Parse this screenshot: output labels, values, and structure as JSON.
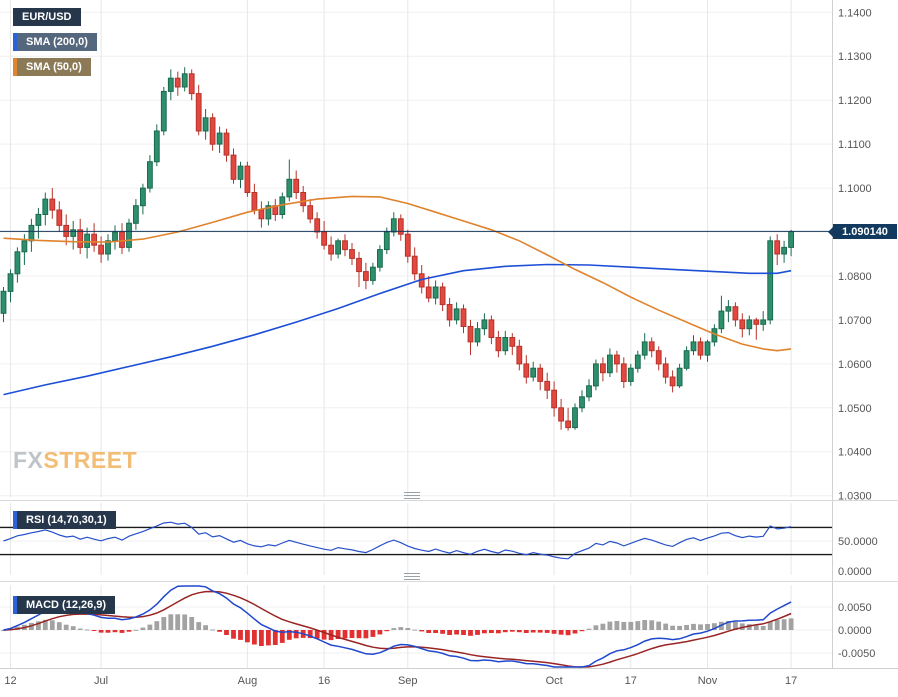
{
  "legend": {
    "symbol_label": "EUR/USD",
    "sma200_label": "SMA (200,0)",
    "sma50_label": "SMA (50,0)"
  },
  "watermark": {
    "fx": "FX",
    "street": "STREET"
  },
  "colors": {
    "badge_dark": "#26374b",
    "sma200_badge": "#55677d",
    "sma50_badge": "#8c7a57",
    "strip_blue": "#2b62d9",
    "strip_orange": "#e0852f",
    "price_badge": "#12395e",
    "wm_fx": "#b4bac0",
    "wm_street": "#f0b25c",
    "sep": "#d8d8d8",
    "grid_h": "#efefef",
    "grid_v": "#e7e7e7",
    "axis_text": "#555555",
    "axis_border": "#d0d0d0",
    "candle_up": "#2e8f6c",
    "candle_up_border": "#1a6a4e",
    "candle_down": "#e2483f",
    "candle_down_border": "#b5332b",
    "sma200": "#1c4fd6",
    "sma50": "#e0832d",
    "price_line": "#16395c",
    "rsi_line": "#2750c8",
    "rsi_level": "#1b1b1b",
    "macd_line": "#1f48cc",
    "signal_line": "#992424",
    "hist_pos": "#a2a2a2",
    "hist_neg": "#e23030"
  },
  "chart_data": {
    "type": "candlestick",
    "symbol": "EUR/USD",
    "current_price": 1.09014,
    "current_price_label": "1.090140",
    "ylim": [
      1.0297,
      1.1428
    ],
    "price_ticks": [
      {
        "v": 1.14,
        "label": "1.1400"
      },
      {
        "v": 1.13,
        "label": "1.1300"
      },
      {
        "v": 1.12,
        "label": "1.1200"
      },
      {
        "v": 1.11,
        "label": "1.1100"
      },
      {
        "v": 1.1,
        "label": "1.1000"
      },
      {
        "v": 1.09,
        "label": "1.0900"
      },
      {
        "v": 1.08,
        "label": "1.0800"
      },
      {
        "v": 1.07,
        "label": "1.0700"
      },
      {
        "v": 1.06,
        "label": "1.0600"
      },
      {
        "v": 1.05,
        "label": "1.0500"
      },
      {
        "v": 1.04,
        "label": "1.0400"
      },
      {
        "v": 1.03,
        "label": "1.0300"
      }
    ],
    "time_ticks": [
      {
        "label": "12",
        "i": 1
      },
      {
        "label": "Jul",
        "i": 14
      },
      {
        "label": "Aug",
        "i": 35
      },
      {
        "label": "16",
        "i": 46
      },
      {
        "label": "Sep",
        "i": 58
      },
      {
        "label": "Oct",
        "i": 79
      },
      {
        "label": "17",
        "i": 90
      },
      {
        "label": "Nov",
        "i": 101
      },
      {
        "label": "17",
        "i": 113
      }
    ],
    "candles": [
      [
        1.0715,
        1.0775,
        1.0695,
        1.0765
      ],
      [
        1.0765,
        1.0815,
        1.074,
        1.0805
      ],
      [
        1.0805,
        1.0865,
        1.0785,
        1.0855
      ],
      [
        1.0855,
        1.0895,
        1.0825,
        1.088
      ],
      [
        1.088,
        1.093,
        1.0855,
        1.0915
      ],
      [
        1.0915,
        1.0955,
        1.0885,
        1.094
      ],
      [
        1.094,
        1.099,
        1.0915,
        1.0975
      ],
      [
        1.0975,
        1.1,
        1.093,
        1.095
      ],
      [
        1.095,
        1.097,
        1.09,
        1.0915
      ],
      [
        1.0915,
        1.094,
        1.087,
        1.089
      ],
      [
        1.089,
        1.0925,
        1.086,
        1.0905
      ],
      [
        1.0905,
        1.093,
        1.085,
        1.0865
      ],
      [
        1.0865,
        1.091,
        1.084,
        1.0895
      ],
      [
        1.0895,
        1.092,
        1.0855,
        1.087
      ],
      [
        1.087,
        1.089,
        1.083,
        1.085
      ],
      [
        1.085,
        1.0895,
        1.0835,
        1.088
      ],
      [
        1.088,
        1.0915,
        1.086,
        1.09
      ],
      [
        1.09,
        1.092,
        1.085,
        1.0865
      ],
      [
        1.0865,
        1.093,
        1.0855,
        1.092
      ],
      [
        1.092,
        1.0975,
        1.0905,
        1.096
      ],
      [
        1.096,
        1.101,
        1.094,
        1.1
      ],
      [
        1.1,
        1.1075,
        1.099,
        1.106
      ],
      [
        1.106,
        1.1145,
        1.105,
        1.113
      ],
      [
        1.113,
        1.123,
        1.112,
        1.122
      ],
      [
        1.122,
        1.127,
        1.12,
        1.125
      ],
      [
        1.125,
        1.1265,
        1.121,
        1.123
      ],
      [
        1.123,
        1.1275,
        1.122,
        1.126
      ],
      [
        1.126,
        1.127,
        1.12,
        1.1215
      ],
      [
        1.1215,
        1.1235,
        1.112,
        1.113
      ],
      [
        1.113,
        1.118,
        1.111,
        1.116
      ],
      [
        1.116,
        1.117,
        1.1085,
        1.11
      ],
      [
        1.11,
        1.114,
        1.108,
        1.1125
      ],
      [
        1.1125,
        1.1135,
        1.106,
        1.1075
      ],
      [
        1.1075,
        1.109,
        1.101,
        1.102
      ],
      [
        1.102,
        1.106,
        1.1,
        1.105
      ],
      [
        1.105,
        1.106,
        1.098,
        1.099
      ],
      [
        1.099,
        1.101,
        1.094,
        1.095
      ],
      [
        1.095,
        1.097,
        1.091,
        1.093
      ],
      [
        1.093,
        1.097,
        1.0915,
        1.096
      ],
      [
        1.096,
        1.0975,
        1.0925,
        1.094
      ],
      [
        1.094,
        1.099,
        1.093,
        1.098
      ],
      [
        1.098,
        1.1065,
        1.097,
        1.102
      ],
      [
        1.102,
        1.104,
        1.0975,
        1.099
      ],
      [
        1.099,
        1.1005,
        1.0945,
        1.096
      ],
      [
        1.096,
        1.0975,
        1.092,
        1.093
      ],
      [
        1.093,
        1.0945,
        1.0885,
        1.09
      ],
      [
        1.09,
        1.0925,
        1.086,
        1.087
      ],
      [
        1.087,
        1.089,
        1.0835,
        1.085
      ],
      [
        1.085,
        1.0885,
        1.084,
        1.088
      ],
      [
        1.088,
        1.0895,
        1.0845,
        1.086
      ],
      [
        1.086,
        1.0875,
        1.0825,
        1.084
      ],
      [
        1.084,
        1.0855,
        1.0775,
        1.081
      ],
      [
        1.081,
        1.083,
        1.077,
        1.079
      ],
      [
        1.079,
        1.083,
        1.078,
        1.082
      ],
      [
        1.082,
        1.087,
        1.081,
        1.086
      ],
      [
        1.086,
        1.091,
        1.085,
        1.09
      ],
      [
        1.09,
        1.0945,
        1.089,
        1.093
      ],
      [
        1.093,
        1.094,
        1.088,
        1.0895
      ],
      [
        1.0895,
        1.0905,
        1.083,
        1.0845
      ],
      [
        1.0845,
        1.0865,
        1.079,
        1.0805
      ],
      [
        1.0805,
        1.0825,
        1.076,
        1.0775
      ],
      [
        1.0775,
        1.08,
        1.074,
        1.075
      ],
      [
        1.075,
        1.079,
        1.0735,
        1.0775
      ],
      [
        1.0775,
        1.0785,
        1.072,
        1.0735
      ],
      [
        1.0735,
        1.075,
        1.0685,
        1.07
      ],
      [
        1.07,
        1.074,
        1.069,
        1.0725
      ],
      [
        1.0725,
        1.0735,
        1.067,
        1.0685
      ],
      [
        1.0685,
        1.07,
        1.062,
        1.065
      ],
      [
        1.065,
        1.0695,
        1.064,
        1.068
      ],
      [
        1.068,
        1.0715,
        1.0665,
        1.07
      ],
      [
        1.07,
        1.071,
        1.0645,
        1.066
      ],
      [
        1.066,
        1.0675,
        1.0615,
        1.063
      ],
      [
        1.063,
        1.0675,
        1.062,
        1.066
      ],
      [
        1.066,
        1.067,
        1.062,
        1.064
      ],
      [
        1.064,
        1.0655,
        1.0585,
        1.06
      ],
      [
        1.06,
        1.062,
        1.0555,
        1.057
      ],
      [
        1.057,
        1.0605,
        1.056,
        1.059
      ],
      [
        1.059,
        1.06,
        1.054,
        1.056
      ],
      [
        1.056,
        1.058,
        1.052,
        1.054
      ],
      [
        1.054,
        1.056,
        1.048,
        1.05
      ],
      [
        1.05,
        1.052,
        1.045,
        1.047
      ],
      [
        1.047,
        1.05,
        1.0448,
        1.0455
      ],
      [
        1.0455,
        1.051,
        1.045,
        1.05
      ],
      [
        1.05,
        1.054,
        1.049,
        1.0525
      ],
      [
        1.0525,
        1.0565,
        1.0515,
        1.055
      ],
      [
        1.055,
        1.061,
        1.054,
        1.06
      ],
      [
        1.06,
        1.0615,
        1.056,
        1.058
      ],
      [
        1.058,
        1.0635,
        1.057,
        1.062
      ],
      [
        1.062,
        1.063,
        1.058,
        1.06
      ],
      [
        1.06,
        1.0615,
        1.0545,
        1.056
      ],
      [
        1.056,
        1.06,
        1.055,
        1.059
      ],
      [
        1.059,
        1.063,
        1.058,
        1.062
      ],
      [
        1.062,
        1.067,
        1.061,
        1.065
      ],
      [
        1.065,
        1.066,
        1.0615,
        1.063
      ],
      [
        1.063,
        1.064,
        1.0585,
        1.06
      ],
      [
        1.06,
        1.0615,
        1.0555,
        1.057
      ],
      [
        1.057,
        1.0585,
        1.0535,
        1.055
      ],
      [
        1.055,
        1.06,
        1.0545,
        1.059
      ],
      [
        1.059,
        1.064,
        1.0585,
        1.063
      ],
      [
        1.063,
        1.0665,
        1.062,
        1.065
      ],
      [
        1.065,
        1.066,
        1.061,
        1.062
      ],
      [
        1.062,
        1.0655,
        1.0605,
        1.065
      ],
      [
        1.065,
        1.069,
        1.064,
        1.068
      ],
      [
        1.068,
        1.0755,
        1.067,
        1.072
      ],
      [
        1.072,
        1.0745,
        1.0695,
        1.073
      ],
      [
        1.073,
        1.074,
        1.0685,
        1.07
      ],
      [
        1.07,
        1.0715,
        1.066,
        1.068
      ],
      [
        1.068,
        1.071,
        1.0665,
        1.07
      ],
      [
        1.07,
        1.0705,
        1.0655,
        1.069
      ],
      [
        1.069,
        1.072,
        1.0675,
        1.07
      ],
      [
        1.07,
        1.089,
        1.069,
        1.088
      ],
      [
        1.088,
        1.0895,
        1.0825,
        1.085
      ],
      [
        1.085,
        1.088,
        1.083,
        1.0865
      ],
      [
        1.0865,
        1.0905,
        1.0845,
        1.0901
      ]
    ],
    "overlays": [
      {
        "name": "SMA (200,0)",
        "data_name": "sma-200-line",
        "color_key": "sma200",
        "points": [
          [
            0,
            1.053
          ],
          [
            6,
            1.0552
          ],
          [
            12,
            1.0572
          ],
          [
            18,
            1.0594
          ],
          [
            24,
            1.0616
          ],
          [
            30,
            1.064
          ],
          [
            36,
            1.0666
          ],
          [
            42,
            1.0695
          ],
          [
            48,
            1.0726
          ],
          [
            54,
            1.076
          ],
          [
            60,
            1.0792
          ],
          [
            66,
            1.0812
          ],
          [
            72,
            1.0822
          ],
          [
            78,
            1.0826
          ],
          [
            84,
            1.0825
          ],
          [
            90,
            1.082
          ],
          [
            96,
            1.0815
          ],
          [
            102,
            1.081
          ],
          [
            107,
            1.0806
          ],
          [
            111,
            1.0806
          ],
          [
            113,
            1.0812
          ]
        ]
      },
      {
        "name": "SMA (50,0)",
        "data_name": "sma-50-line",
        "color_key": "sma50",
        "points": [
          [
            0,
            1.0886
          ],
          [
            5,
            1.0881
          ],
          [
            10,
            1.0878
          ],
          [
            15,
            1.0877
          ],
          [
            20,
            1.0884
          ],
          [
            25,
            1.09
          ],
          [
            30,
            1.0922
          ],
          [
            35,
            1.0945
          ],
          [
            40,
            1.0962
          ],
          [
            45,
            1.0975
          ],
          [
            50,
            1.0981
          ],
          [
            54,
            1.098
          ],
          [
            58,
            1.0965
          ],
          [
            62,
            1.0945
          ],
          [
            66,
            1.0925
          ],
          [
            70,
            1.0905
          ],
          [
            74,
            1.088
          ],
          [
            78,
            1.0848
          ],
          [
            82,
            1.0815
          ],
          [
            86,
            1.0785
          ],
          [
            90,
            1.0752
          ],
          [
            94,
            1.0722
          ],
          [
            98,
            1.0695
          ],
          [
            102,
            1.0668
          ],
          [
            106,
            1.0645
          ],
          [
            109,
            1.0634
          ],
          [
            111,
            1.063
          ],
          [
            113,
            1.0634
          ]
        ]
      }
    ],
    "indicators": {
      "rsi": {
        "label": "RSI (14,70,30,1)",
        "params": [
          14,
          70,
          30,
          1
        ],
        "levels": [
          70,
          30
        ],
        "axis_ticks": [
          {
            "v": 50,
            "label": "50.0000"
          },
          {
            "v": 0,
            "label": "0.0000"
          }
        ]
      },
      "macd": {
        "label": "MACD (12,26,9)",
        "params": [
          12,
          26,
          9
        ],
        "axis_ticks": [
          {
            "v": 0.005,
            "label": "0.0050"
          },
          {
            "v": 0,
            "label": "0.0000"
          },
          {
            "v": -0.005,
            "label": "-0.0050"
          }
        ]
      }
    }
  }
}
